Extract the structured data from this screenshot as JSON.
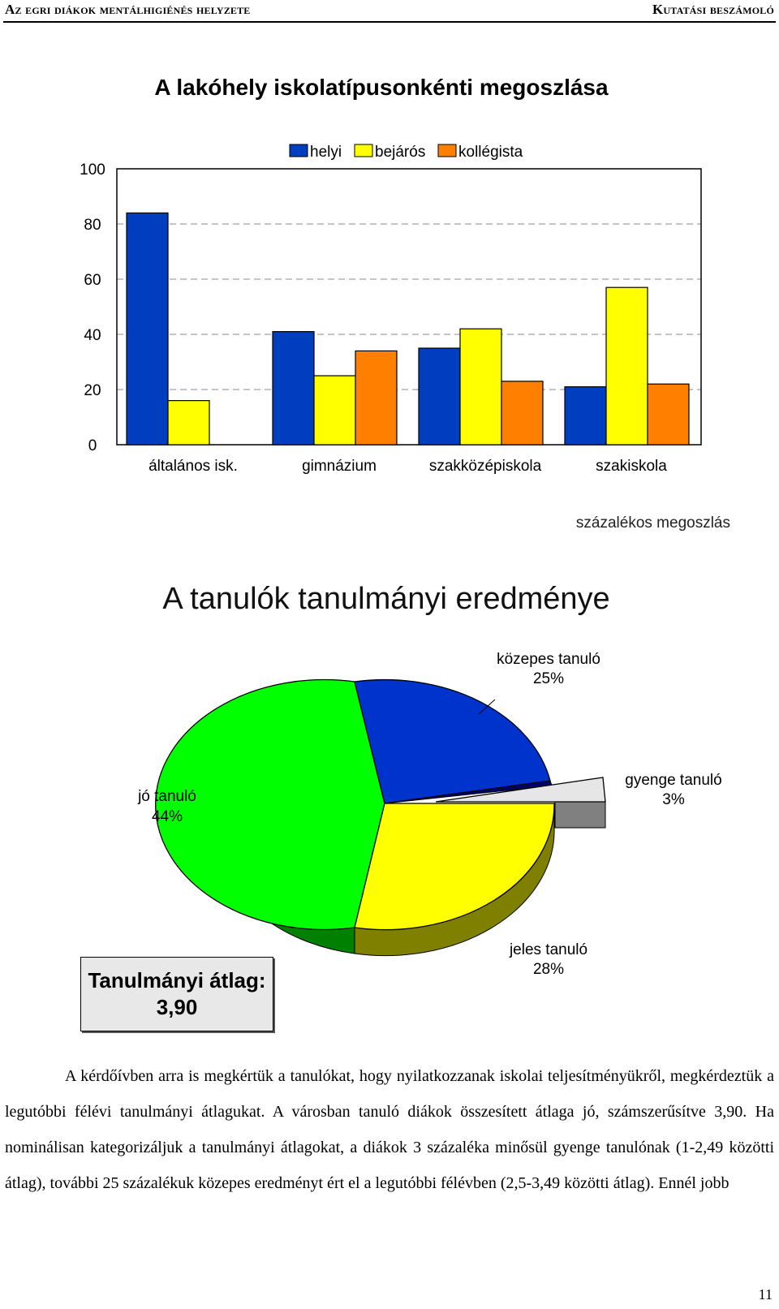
{
  "header": {
    "left_first": "A",
    "left_rest": "z egri diákok mentálhigiénés helyzete",
    "right_first": "K",
    "right_rest": "utatási beszámoló"
  },
  "chart_data": [
    {
      "type": "bar",
      "title": "A lakóhely iskolatípusonkénti megoszlása",
      "categories": [
        "általános isk.",
        "gimnázium",
        "szakközépiskola",
        "szakiskola"
      ],
      "series": [
        {
          "name": "helyi",
          "color": "#003ec0",
          "values": [
            84,
            41,
            35,
            21
          ]
        },
        {
          "name": "bejárós",
          "color": "#ffff00",
          "values": [
            16,
            25,
            42,
            57
          ]
        },
        {
          "name": "kollégista",
          "color": "#ff8000",
          "values": [
            0,
            34,
            23,
            22
          ]
        }
      ],
      "ylim": [
        0,
        100
      ],
      "yticks": [
        "0",
        "20",
        "40",
        "60",
        "80",
        "100"
      ],
      "legend": "top",
      "note": "százalékos megoszlás",
      "grid": true
    },
    {
      "type": "pie",
      "title": "A tanulók tanulmányi eredménye",
      "slices": [
        {
          "label": "közepes tanuló",
          "pct_label": "25%",
          "value": 25,
          "color": "#0033cc"
        },
        {
          "label": "gyenge tanuló",
          "pct_label": "3%",
          "value": 3,
          "color": "#e6e6e6"
        },
        {
          "label": "jeles tanuló",
          "pct_label": "28%",
          "value": 28,
          "color": "#ffff00"
        },
        {
          "label": "jó tanuló",
          "pct_label": "44%",
          "value": 44,
          "color": "#00ff00"
        }
      ]
    }
  ],
  "average_box": {
    "line1": "Tanulmányi átlag:",
    "line2": "3,90"
  },
  "paragraph": "A kérdőívben arra is megkértük a tanulókat, hogy nyilatkozzanak iskolai teljesítményükről, megkérdeztük a legutóbbi félévi tanulmányi átlagukat. A városban tanuló diákok összesített átlaga jó, számszerűsítve 3,90. Ha nominálisan kategorizáljuk a tanulmányi átlagokat, a diákok 3 százaléka minősül gyenge tanulónak (1-2,49 közötti átlag), további 25 százalékuk közepes eredményt ért el a legutóbbi félévben (2,5-3,49 közötti átlag). Ennél jobb",
  "page_number": "11"
}
